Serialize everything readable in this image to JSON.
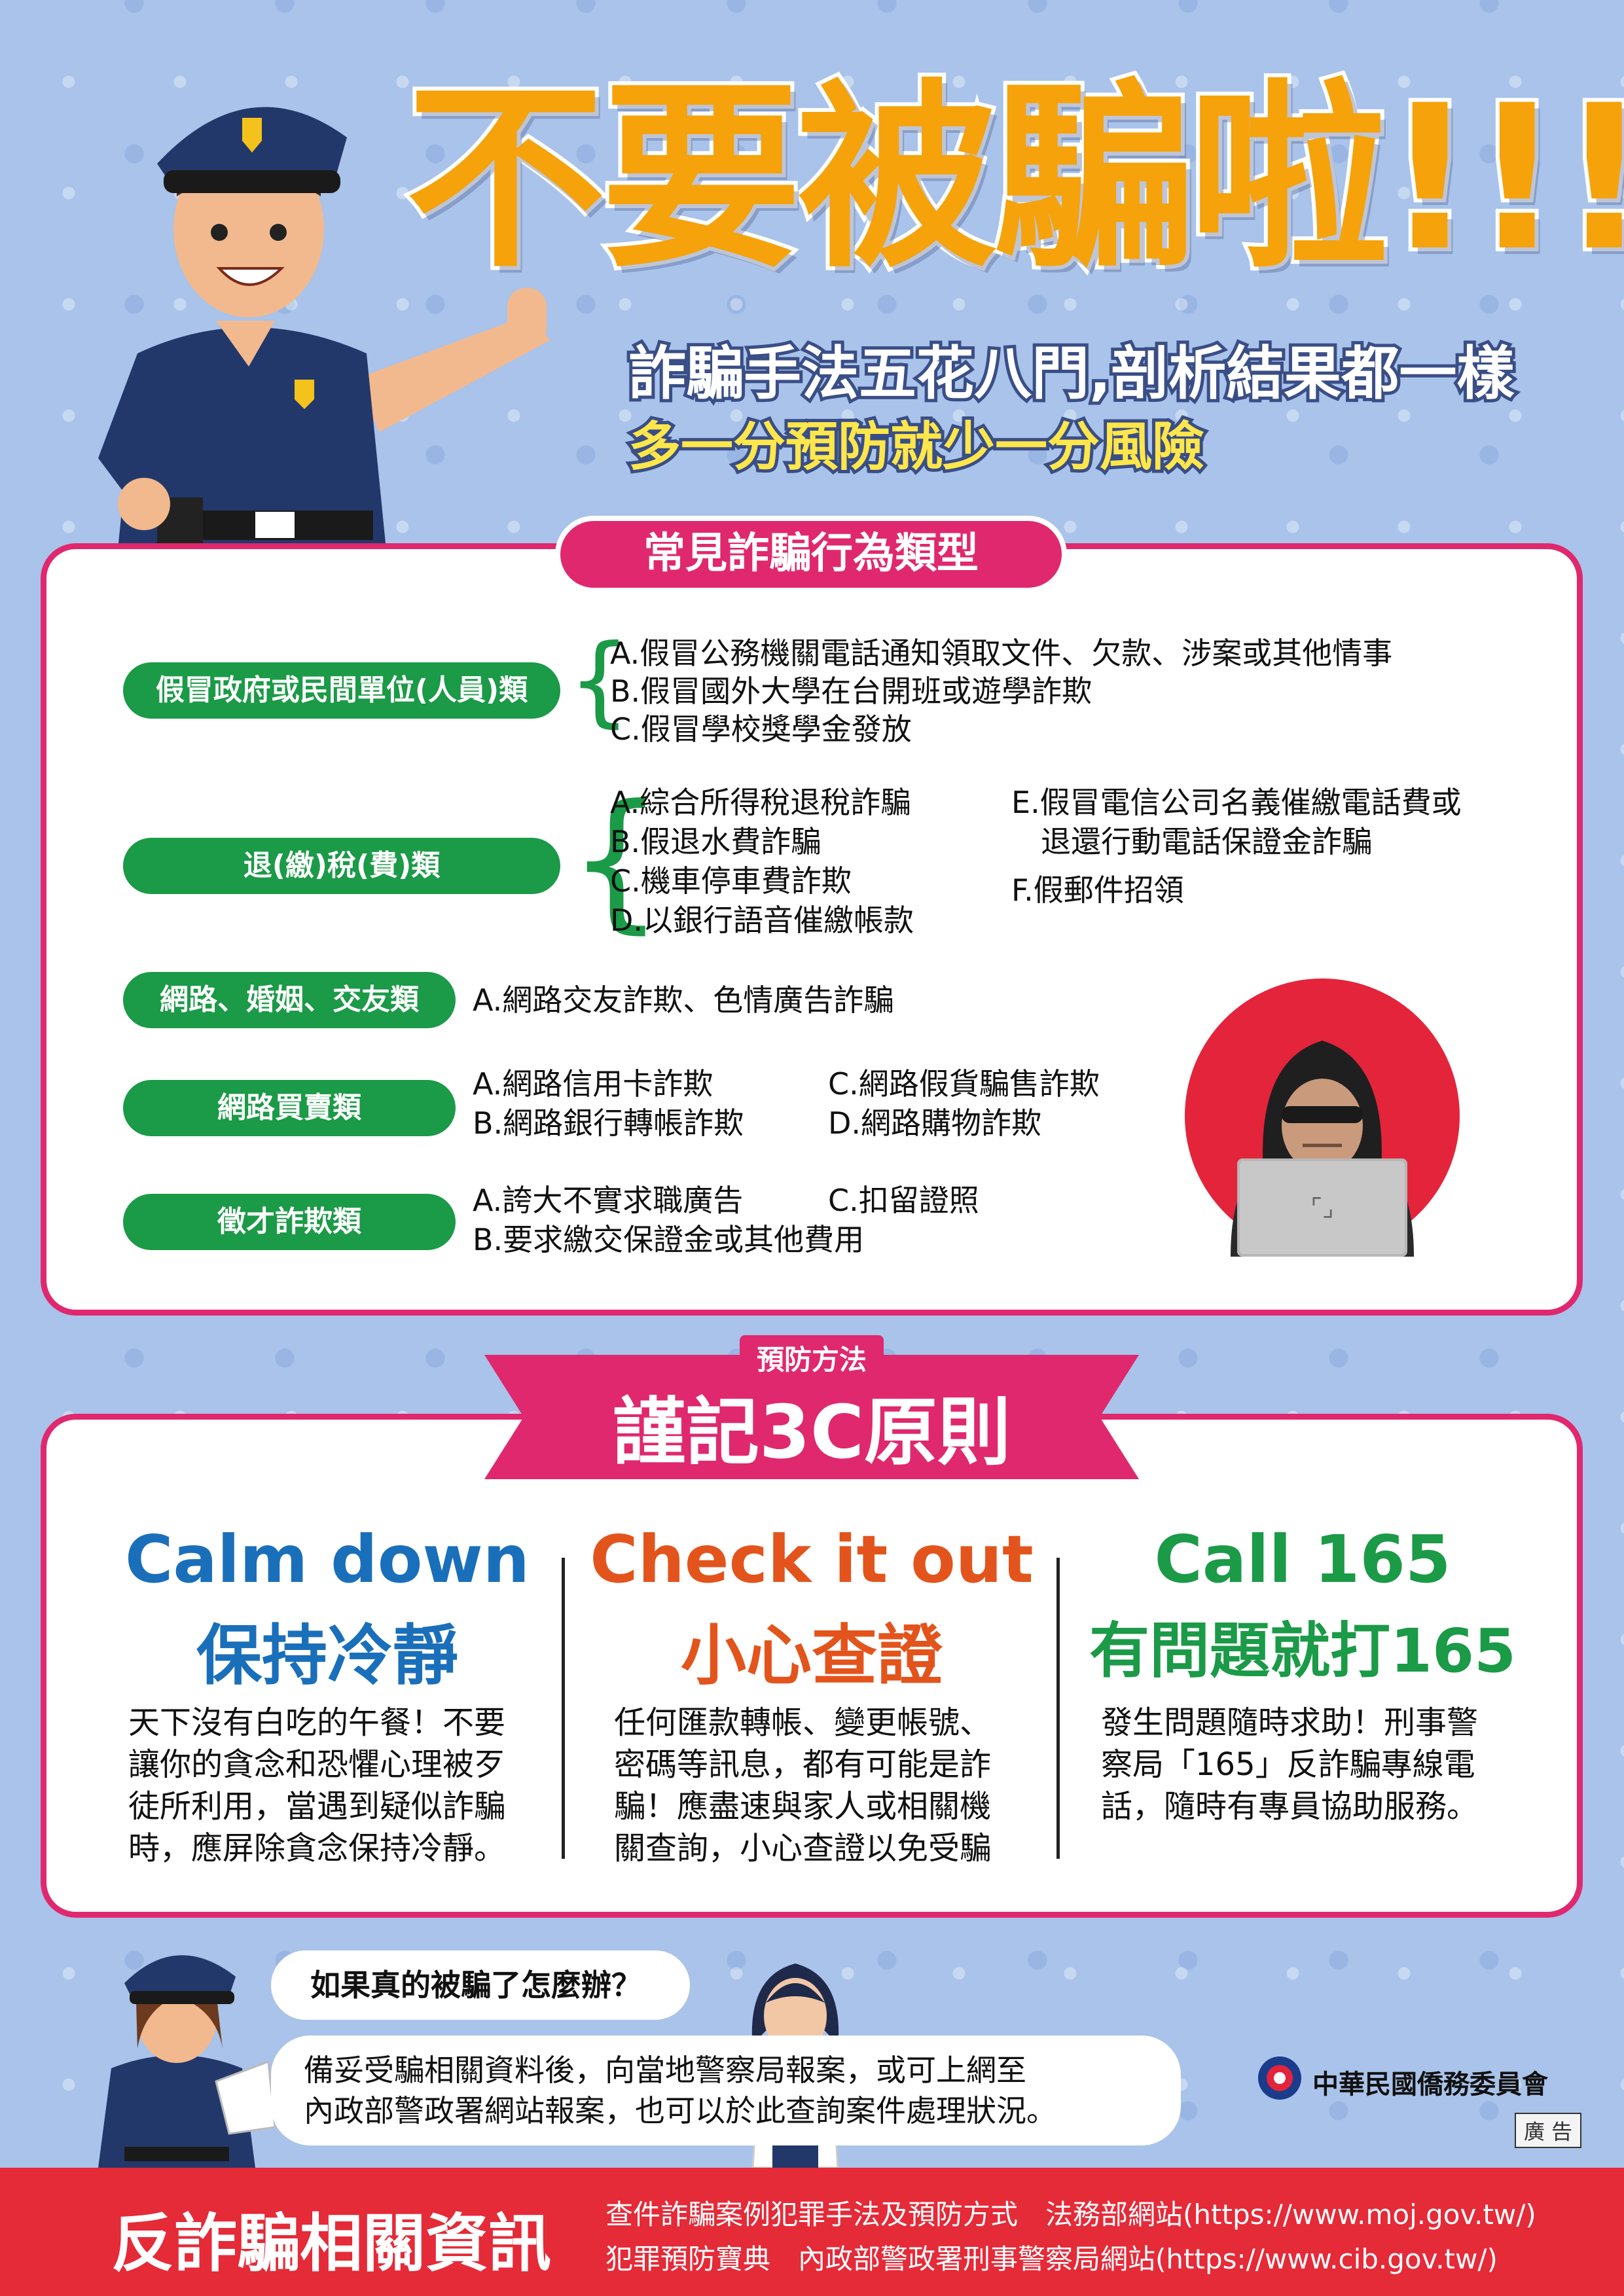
{
  "headline": {
    "title": "不要被騙啦!!!",
    "subtitle1": "詐騙手法五花八門,剖析結果都一樣",
    "subtitle2": "多一分預防就少一分風險"
  },
  "fraud_types": {
    "section_title": "常見詐騙行為類型",
    "categories": [
      {
        "label": "假冒政府或民間單位(人員)類",
        "items": [
          "A.假冒公務機關電話通知領取文件、欠款、涉案或其他情事",
          "B.假冒國外大學在台開班或遊學詐欺",
          "C.假冒學校獎學金發放"
        ]
      },
      {
        "label": "退(繳)稅(費)類",
        "items": [
          "A.綜合所得稅退稅詐騙",
          "B.假退水費詐騙",
          "C.機車停車費詐欺",
          "D.以銀行語音催繳帳款"
        ],
        "items_right": [
          "E.假冒電信公司名義催繳電話費或",
          "退還行動電話保證金詐騙",
          "F.假郵件招領"
        ]
      },
      {
        "label": "網路、婚姻、交友類",
        "items": [
          "A.網路交友詐欺、色情廣告詐騙"
        ]
      },
      {
        "label": "網路買賣類",
        "items": [
          "A.網路信用卡詐欺",
          "B.網路銀行轉帳詐欺"
        ],
        "items_right": [
          "C.網路假貨騙售詐欺",
          "D.網路購物詐欺"
        ]
      },
      {
        "label": "徵才詐欺類",
        "items": [
          "A.誇大不實求職廣告",
          "B.要求繳交保證金或其他費用"
        ],
        "items_right": [
          "C.扣留證照"
        ]
      }
    ]
  },
  "prevention": {
    "small_label": "預防方法",
    "title": "謹記3C原則",
    "columns": [
      {
        "heading_en": "Calm down",
        "heading_zh": "保持冷靜",
        "text": "天下沒有白吃的午餐！不要讓你的貪念和恐懼心理被歹徒所利用，當遇到疑似詐騙時，應屏除貪念保持冷靜。",
        "color": "#1a6fba"
      },
      {
        "heading_en": "Check it out",
        "heading_zh": "小心查證",
        "text": "任何匯款轉帳、變更帳號、密碼等訊息，都有可能是詐騙！應盡速與家人或相關機關查詢，小心查證以免受騙",
        "color": "#e3541c"
      },
      {
        "heading_en": "Call 165",
        "heading_zh": "有問題就打165",
        "text": "發生問題隨時求助！刑事警察局「165」反詐騙專線電話，隨時有專員協助服務。",
        "color": "#1b9a47"
      }
    ]
  },
  "faq": {
    "question": "如果真的被騙了怎麼辦？",
    "answer_line1": "備妥受騙相關資料後，向當地警察局報案，或可上網至",
    "answer_line2": "內政部警政署網站報案，也可以於此查詢案件處理狀況。"
  },
  "org": {
    "name": "中華民國僑務委員會",
    "ad_label": "廣 告"
  },
  "footer": {
    "title": "反詐騙相關資訊",
    "line1": "查件詐騙案例犯罪手法及預防方式　法務部網站(https://www.moj.gov.tw/)",
    "line2": "犯罪預防寶典　內政部警政署刑事警察局網站(https://www.cib.gov.tw/)"
  },
  "colors": {
    "background": "#a9c3ea",
    "accent_pink": "#e0286e",
    "green": "#1b9a47",
    "title_orange": "#f5a20b",
    "footer_red": "#e52a38"
  },
  "icons": [
    "police-officer-illustration",
    "hacker-illustration",
    "policewoman-illustration",
    "woman-illustration",
    "emblem-icon"
  ]
}
